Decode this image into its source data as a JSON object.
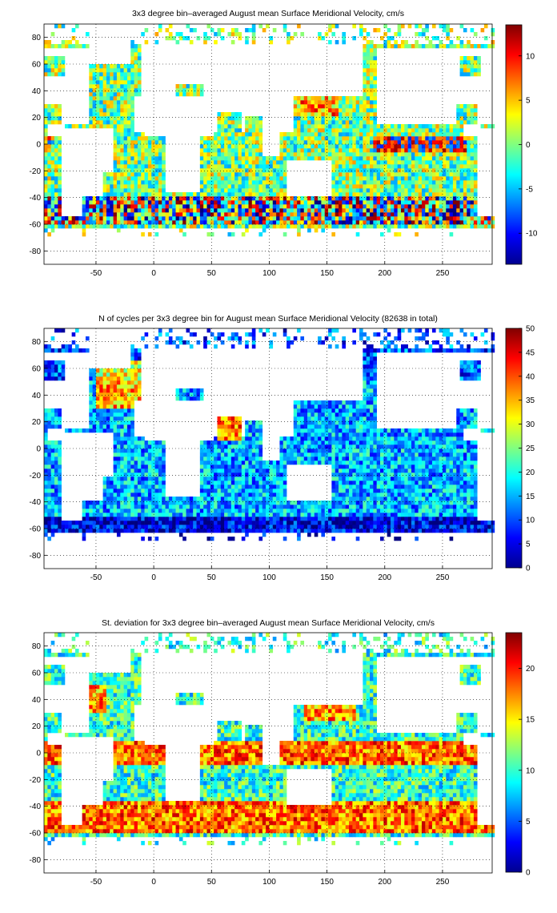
{
  "figure": {
    "background": "#ffffff",
    "colormap": "jet"
  },
  "chart_data": [
    {
      "type": "heatmap",
      "title": "3x3 degree bin–averaged August mean Surface Meridional Velocity, cm/s",
      "xlabel": "",
      "ylabel": "",
      "xlim": [
        -95,
        293
      ],
      "ylim": [
        -90,
        90
      ],
      "bin_size_deg": 3,
      "xticks": [
        -50,
        0,
        50,
        100,
        150,
        200,
        250
      ],
      "yticks": [
        -80,
        -60,
        -40,
        -20,
        0,
        20,
        40,
        60,
        80
      ],
      "grid": "dotted",
      "colorbar": {
        "min": -13.5,
        "max": 13.5,
        "ticks": [
          -10,
          -5,
          0,
          5,
          10
        ]
      },
      "description": "Mostly near zero (green/cyan) with strong positive (red) bands along western boundaries and equatorial Pacific, negative (blue) bands in North Atlantic/Pacific subtropics and Southern Ocean; scattered values range -13 to 13 cm/s"
    },
    {
      "type": "heatmap",
      "title": "N of cycles per 3x3 degree bin for August mean Surface Meridional Velocity (82638 in total)",
      "xlabel": "",
      "ylabel": "",
      "xlim": [
        -95,
        293
      ],
      "ylim": [
        -90,
        90
      ],
      "bin_size_deg": 3,
      "xticks": [
        -50,
        0,
        50,
        100,
        150,
        200,
        250
      ],
      "yticks": [
        -80,
        -60,
        -40,
        -20,
        0,
        20,
        40,
        60,
        80
      ],
      "grid": "dotted",
      "colorbar": {
        "min": 0,
        "max": 50,
        "ticks": [
          0,
          5,
          10,
          15,
          20,
          25,
          30,
          35,
          40,
          45,
          50
        ]
      },
      "description": "Counts 0-50 per bin; highest (red, >45) in North Atlantic and Arabian Sea, mid (15-35) across subtropical gyres, low (<10) in Southern Ocean and high latitudes"
    },
    {
      "type": "heatmap",
      "title": "St. deviation for 3x3 degree bin–averaged August mean Surface Meridional Velocity, cm/s",
      "xlabel": "",
      "ylabel": "",
      "xlim": [
        -95,
        293
      ],
      "ylim": [
        -90,
        90
      ],
      "bin_size_deg": 3,
      "xticks": [
        -50,
        0,
        50,
        100,
        150,
        200,
        250
      ],
      "yticks": [
        -80,
        -60,
        -40,
        -20,
        0,
        20,
        40,
        60,
        80
      ],
      "grid": "dotted",
      "colorbar": {
        "min": 0,
        "max": 23.5,
        "ticks": [
          0,
          5,
          10,
          15,
          20
        ]
      },
      "description": "Std dev 0-24 cm/s; high (red, >20) along equatorial band, western boundary currents and Antarctic Circumpolar Current; moderate (10-15) in subtropical gyres"
    }
  ]
}
